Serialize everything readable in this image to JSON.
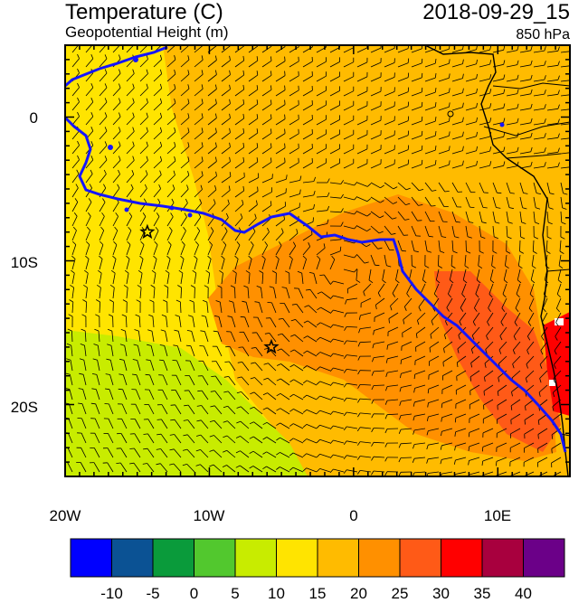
{
  "header": {
    "title": "Temperature (C)",
    "subtitle": "Geopotential Height (m)",
    "timestamp": "2018-09-29_15",
    "level": "850 hPa"
  },
  "axes": {
    "y_ticks": [
      "0",
      "10S",
      "20S"
    ],
    "x_ticks": [
      "20W",
      "10W",
      "0",
      "10E"
    ]
  },
  "colorbar": {
    "labels": [
      "-10",
      "-5",
      "0",
      "5",
      "10",
      "15",
      "20",
      "25",
      "30",
      "35",
      "40"
    ],
    "colors": [
      "#0000ff",
      "#0b5294",
      "#0a9b3b",
      "#52c82e",
      "#c8ec00",
      "#ffe400",
      "#ffbb00",
      "#ff9000",
      "#ff5a17",
      "#ff0000",
      "#a8003e",
      "#6b0088"
    ]
  },
  "map_data": {
    "lon_range": [
      -20,
      15
    ],
    "lat_range": [
      -25,
      5
    ],
    "markers": [
      {
        "name": "star-marker-1",
        "lon": -14.3,
        "lat": -8.0
      },
      {
        "name": "star-marker-2",
        "lon": -5.7,
        "lat": -16.0
      }
    ]
  }
}
